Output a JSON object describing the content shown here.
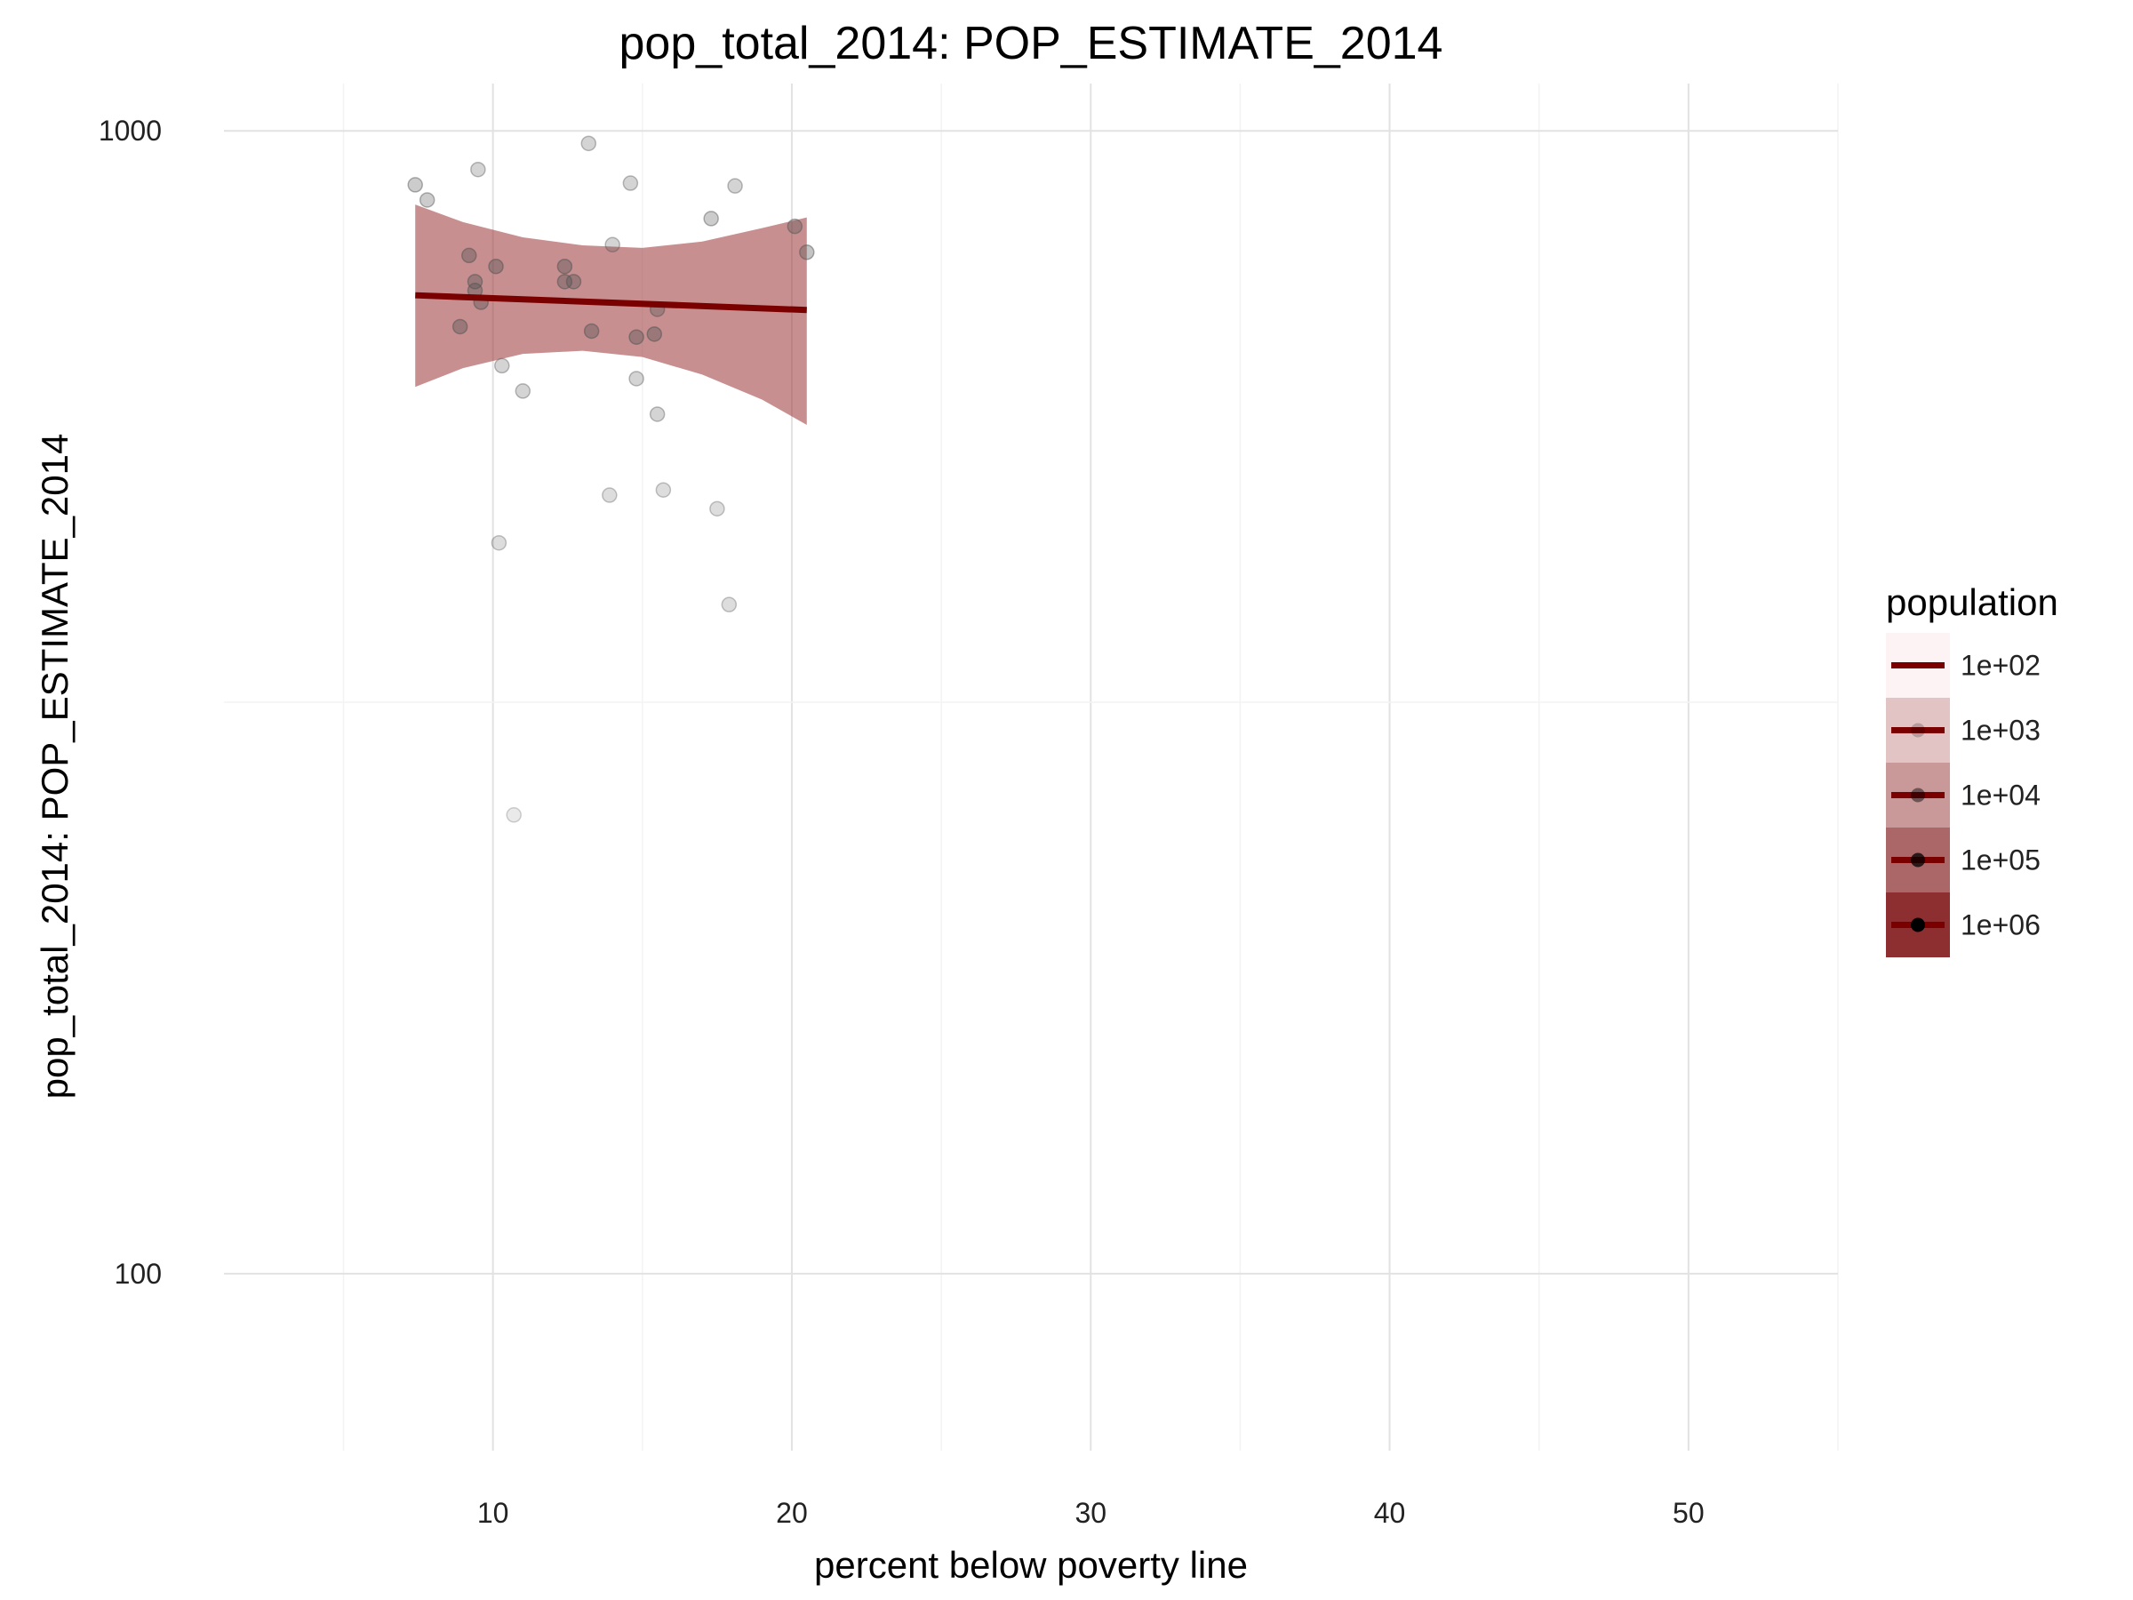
{
  "chart_data": {
    "type": "scatter",
    "title": "pop_total_2014: POP_ESTIMATE_2014",
    "xlabel": "percent below poverty line",
    "ylabel": "pop_total_2014: POP_ESTIMATE_2014",
    "xlim": [
      1,
      55
    ],
    "ylim": [
      70,
      1100
    ],
    "y_scale": "log10",
    "x_ticks": [
      10,
      20,
      30,
      40,
      50
    ],
    "x_tick_labels": [
      "10",
      "20",
      "30",
      "40",
      "50"
    ],
    "y_ticks": [
      100,
      1000
    ],
    "y_tick_labels": [
      "100",
      "1000"
    ],
    "grid": true,
    "points": [
      {
        "x": 7.4,
        "y": 897,
        "a": 0.3
      },
      {
        "x": 7.8,
        "y": 870,
        "a": 0.3
      },
      {
        "x": 9.5,
        "y": 925,
        "a": 0.25
      },
      {
        "x": 13.2,
        "y": 975,
        "a": 0.25
      },
      {
        "x": 14.6,
        "y": 900,
        "a": 0.25
      },
      {
        "x": 18.1,
        "y": 895,
        "a": 0.25
      },
      {
        "x": 17.3,
        "y": 838,
        "a": 0.3
      },
      {
        "x": 20.1,
        "y": 825,
        "a": 0.35
      },
      {
        "x": 20.5,
        "y": 783,
        "a": 0.35
      },
      {
        "x": 14.0,
        "y": 795,
        "a": 0.25
      },
      {
        "x": 9.2,
        "y": 778,
        "a": 0.4
      },
      {
        "x": 10.1,
        "y": 761,
        "a": 0.4
      },
      {
        "x": 12.4,
        "y": 761,
        "a": 0.4
      },
      {
        "x": 9.4,
        "y": 738,
        "a": 0.4
      },
      {
        "x": 12.4,
        "y": 738,
        "a": 0.4
      },
      {
        "x": 12.7,
        "y": 738,
        "a": 0.4
      },
      {
        "x": 9.4,
        "y": 725,
        "a": 0.4
      },
      {
        "x": 9.6,
        "y": 708,
        "a": 0.4
      },
      {
        "x": 15.5,
        "y": 698,
        "a": 0.35
      },
      {
        "x": 8.9,
        "y": 674,
        "a": 0.4
      },
      {
        "x": 13.3,
        "y": 668,
        "a": 0.4
      },
      {
        "x": 15.4,
        "y": 664,
        "a": 0.4
      },
      {
        "x": 14.8,
        "y": 660,
        "a": 0.4
      },
      {
        "x": 10.3,
        "y": 623,
        "a": 0.25
      },
      {
        "x": 14.8,
        "y": 607,
        "a": 0.25
      },
      {
        "x": 11.0,
        "y": 592,
        "a": 0.25
      },
      {
        "x": 15.5,
        "y": 565,
        "a": 0.25
      },
      {
        "x": 15.7,
        "y": 485,
        "a": 0.2
      },
      {
        "x": 13.9,
        "y": 480,
        "a": 0.2
      },
      {
        "x": 17.5,
        "y": 467,
        "a": 0.2
      },
      {
        "x": 10.2,
        "y": 436,
        "a": 0.2
      },
      {
        "x": 17.9,
        "y": 385,
        "a": 0.2
      },
      {
        "x": 10.7,
        "y": 252,
        "a": 0.12
      }
    ],
    "fit_line": {
      "x": [
        7.4,
        20.5
      ],
      "y": [
        718,
        697
      ]
    },
    "confidence_band": {
      "x": [
        7.4,
        9,
        11,
        13,
        15,
        17,
        19,
        20.5
      ],
      "lower": [
        597,
        620,
        638,
        642,
        634,
        612,
        582,
        553
      ],
      "upper": [
        862,
        832,
        807,
        794,
        790,
        800,
        822,
        840
      ]
    },
    "legend": {
      "title": "population",
      "placement": "right",
      "items": [
        {
          "label": "1e+02",
          "band_color": "#fdf3f5",
          "dot_alpha": 0
        },
        {
          "label": "1e+03",
          "band_color": "#e3c4c5",
          "dot_alpha": 0.2
        },
        {
          "label": "1e+04",
          "band_color": "#c99899",
          "dot_alpha": 0.45
        },
        {
          "label": "1e+05",
          "band_color": "#ab6668",
          "dot_alpha": 0.75
        },
        {
          "label": "1e+06",
          "band_color": "#8d2f31",
          "dot_alpha": 1.0
        }
      ]
    },
    "colors": {
      "line": "#7a0000",
      "band": "#9b3336",
      "point": "#555555",
      "grid": "#e2e2e2"
    }
  }
}
